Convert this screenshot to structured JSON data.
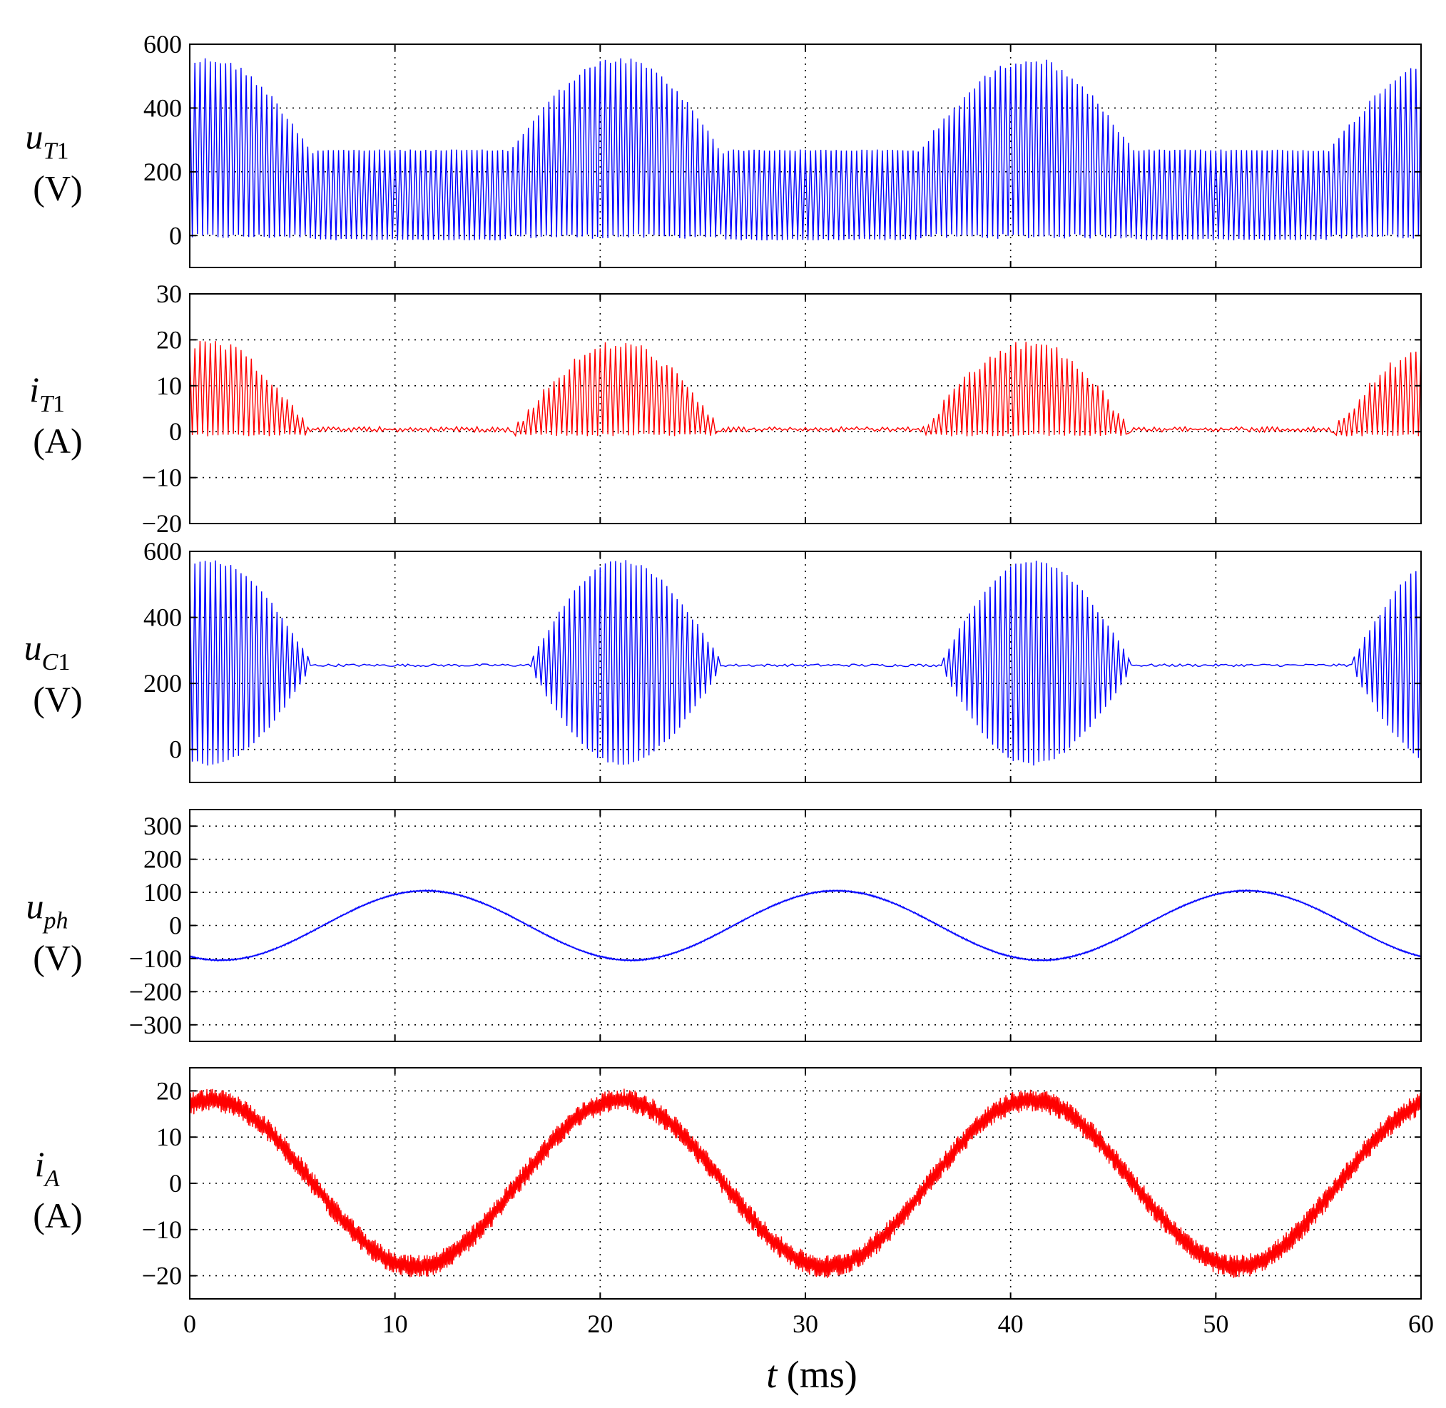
{
  "colors": {
    "blue": "#0000ff",
    "red": "#ff0000",
    "axis": "#000000"
  },
  "x_axis": {
    "label_var": "t",
    "label_unit": " (ms)",
    "range": [
      0,
      60
    ],
    "ticks": [
      "0",
      "10",
      "20",
      "30",
      "40",
      "50",
      "60"
    ]
  },
  "chart_data": [
    {
      "type": "line",
      "id": "uT1",
      "color": "blue",
      "symbol": "u",
      "subscript": "T1",
      "unit": "(V)",
      "italic_sub": true,
      "sub_upright_tail": "1",
      "ylim": [
        -100,
        600
      ],
      "yticks": [
        0,
        200,
        400,
        600
      ],
      "ytick_labels": [
        "0",
        "200",
        "400",
        "600"
      ],
      "xlim": [
        0,
        60
      ],
      "grid": true,
      "signal": {
        "kind": "pwm_voltage",
        "description_values": {
          "dc_level_V": 270,
          "peak_V": 560,
          "low_V": -10
        },
        "conduction_windows_ms": [
          [
            -5,
            6
          ],
          [
            15.5,
            26
          ],
          [
            35.5,
            46
          ],
          [
            55.5,
            66
          ]
        ],
        "peak_times_ms": [
          1,
          21,
          41,
          61
        ],
        "switching_period_ms": 0.25
      },
      "xlabel": "t (ms)"
    },
    {
      "type": "line",
      "id": "iT1",
      "color": "red",
      "symbol": "i",
      "subscript": "T1",
      "unit": "(A)",
      "ylim": [
        -20,
        30
      ],
      "yticks": [
        -20,
        -10,
        0,
        10,
        20,
        30
      ],
      "ytick_labels": [
        "−20",
        "−10",
        "0",
        "10",
        "20",
        "30"
      ],
      "xlim": [
        0,
        60
      ],
      "grid": true,
      "signal": {
        "kind": "pwm_current",
        "description_values": {
          "peak_A": 20,
          "low_A": -1,
          "idle_A": 0.5
        },
        "conduction_windows_ms": [
          [
            -5,
            6
          ],
          [
            15.5,
            26
          ],
          [
            35.5,
            46
          ],
          [
            55.5,
            66
          ]
        ],
        "peak_times_ms": [
          1,
          21,
          41,
          61
        ],
        "switching_period_ms": 0.25
      },
      "xlabel": "t (ms)"
    },
    {
      "type": "line",
      "id": "uC1",
      "color": "blue",
      "symbol": "u",
      "subscript": "C1",
      "unit": "(V)",
      "ylim": [
        -100,
        600
      ],
      "yticks": [
        0,
        200,
        400,
        600
      ],
      "ytick_labels": [
        "0",
        "200",
        "400",
        "600"
      ],
      "xlim": [
        0,
        60
      ],
      "grid": true,
      "signal": {
        "kind": "capacitor_voltage",
        "description_values": {
          "dc_level_V": 255,
          "peak_V": 570,
          "trough_V": -10
        },
        "conduction_windows_ms": [
          [
            -5,
            6
          ],
          [
            16.5,
            26
          ],
          [
            36.5,
            46
          ],
          [
            56.5,
            66
          ]
        ],
        "peak_times_ms": [
          1,
          21,
          41,
          61
        ],
        "switching_period_ms": 0.25
      },
      "xlabel": "t (ms)"
    },
    {
      "type": "line",
      "id": "uph",
      "color": "blue",
      "symbol": "u",
      "subscript": "ph",
      "unit": "(V)",
      "ylim": [
        -350,
        350
      ],
      "yticks": [
        -300,
        -200,
        -100,
        0,
        100,
        200,
        300
      ],
      "ytick_labels": [
        "−300",
        "−200",
        "−100",
        "0",
        "100",
        "200",
        "300"
      ],
      "xlim": [
        0,
        60
      ],
      "grid": true,
      "signal": {
        "kind": "sine",
        "amplitude_V": 105,
        "period_ms": 20,
        "peak_time_ms": 11.5,
        "ripple": 2
      },
      "xlabel": "t (ms)"
    },
    {
      "type": "line",
      "id": "iA",
      "color": "red",
      "symbol": "i",
      "subscript": "A",
      "unit": "(A)",
      "ylim": [
        -25,
        25
      ],
      "yticks": [
        -20,
        -10,
        0,
        10,
        20
      ],
      "ytick_labels": [
        "−20",
        "−10",
        "0",
        "10",
        "20"
      ],
      "xlim": [
        0,
        60
      ],
      "grid": true,
      "signal": {
        "kind": "sine",
        "amplitude_A": 18,
        "period_ms": 20,
        "peak_time_ms": 21,
        "ripple": 2.5
      },
      "xlabel": "t (ms)"
    }
  ]
}
